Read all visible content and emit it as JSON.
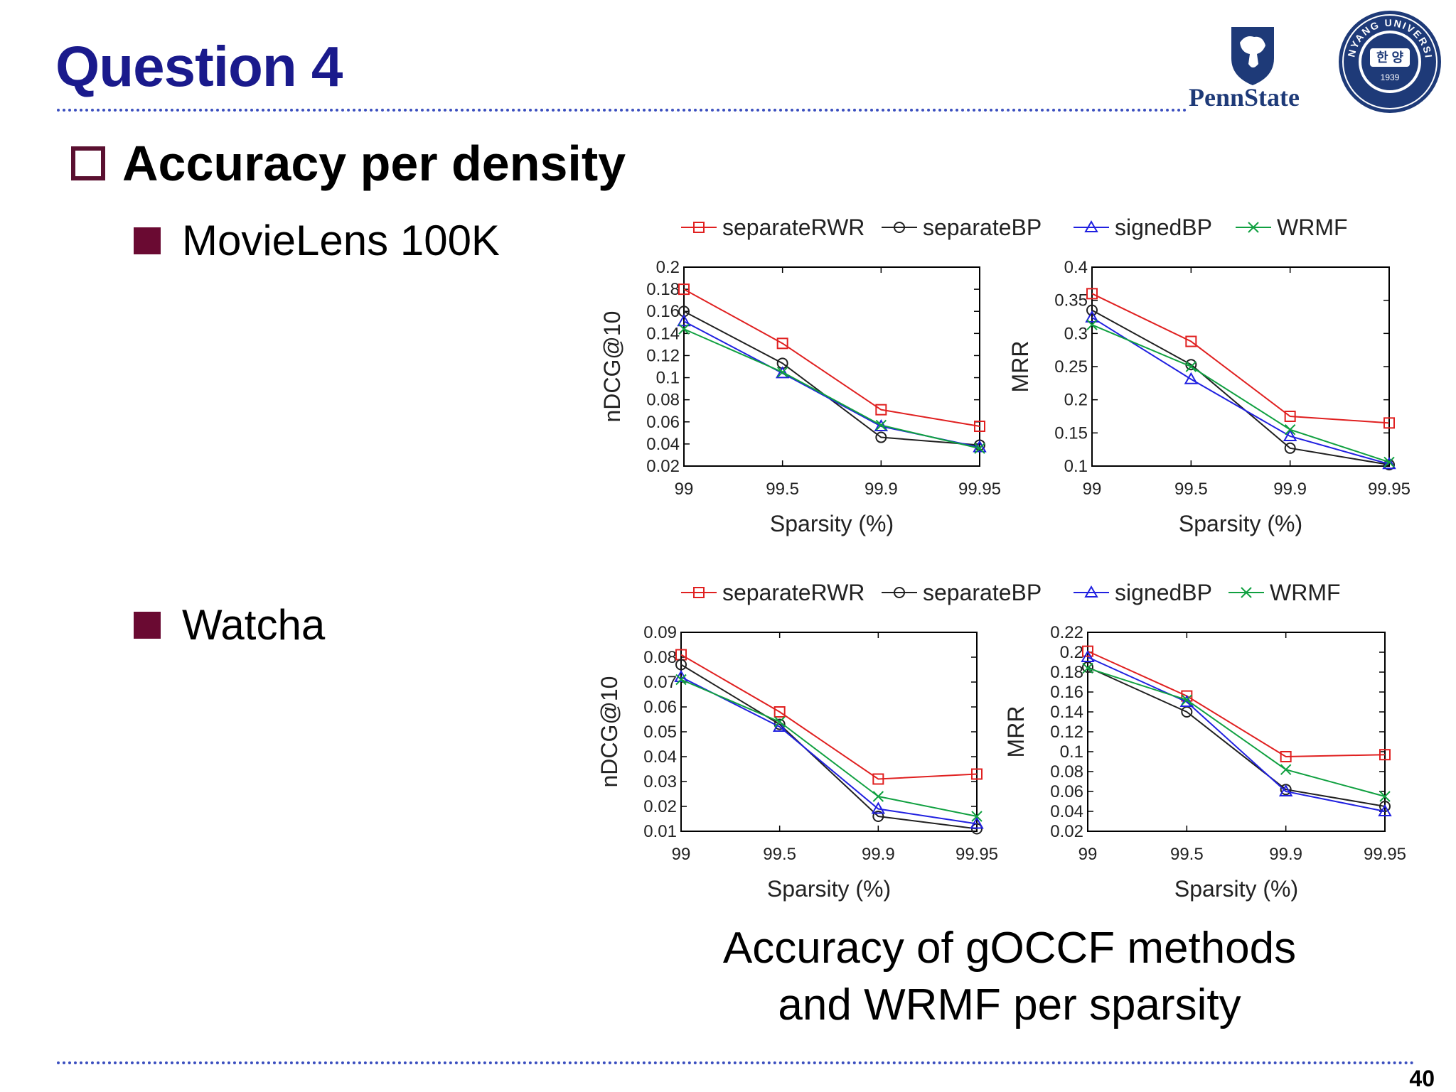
{
  "slide": {
    "title": "Question 4",
    "heading": "Accuracy per density",
    "bullets": [
      "MovieLens 100K",
      "Watcha"
    ],
    "caption_line1": "Accuracy of gOCCF methods",
    "caption_line2": "and WRMF per sparsity",
    "page_number": "40"
  },
  "logos": {
    "pennstate": {
      "wordmark": "PennState",
      "icon": "nittany-lion-shield-icon"
    },
    "hanyang": {
      "top_text": "HANYANG UNIVERSITY",
      "center_text": "한 양",
      "year": "1939",
      "icon": "hanyang-seal-icon"
    }
  },
  "colors": {
    "title": "#1a1a8c",
    "separateRWR": "#e02020",
    "separateBP": "#202020",
    "signedBP": "#2020e0",
    "WRMF": "#10a040"
  },
  "chart_data": [
    {
      "type": "line",
      "dataset": "MovieLens 100K",
      "ylabel": "nDCG@10",
      "xlabel": "Sparsity (%)",
      "categories": [
        "99",
        "99.5",
        "99.9",
        "99.95"
      ],
      "ylim": [
        0.02,
        0.2
      ],
      "yticks": [
        "0.02",
        "0.04",
        "0.06",
        "0.08",
        "0.1",
        "0.12",
        "0.14",
        "0.16",
        "0.18",
        "0.2"
      ],
      "series": [
        {
          "name": "separateRWR",
          "values": [
            0.18,
            0.131,
            0.071,
            0.056
          ]
        },
        {
          "name": "separateBP",
          "values": [
            0.16,
            0.113,
            0.046,
            0.039
          ]
        },
        {
          "name": "signedBP",
          "values": [
            0.151,
            0.104,
            0.056,
            0.037
          ]
        },
        {
          "name": "WRMF",
          "values": [
            0.144,
            0.105,
            0.057,
            0.036
          ]
        }
      ]
    },
    {
      "type": "line",
      "dataset": "MovieLens 100K",
      "ylabel": "MRR",
      "xlabel": "Sparsity (%)",
      "categories": [
        "99",
        "99.5",
        "99.9",
        "99.95"
      ],
      "ylim": [
        0.1,
        0.4
      ],
      "yticks": [
        "0.1",
        "0.15",
        "0.2",
        "0.25",
        "0.3",
        "0.35",
        "0.4"
      ],
      "series": [
        {
          "name": "separateRWR",
          "values": [
            0.36,
            0.288,
            0.175,
            0.165
          ]
        },
        {
          "name": "separateBP",
          "values": [
            0.335,
            0.253,
            0.127,
            0.102
          ]
        },
        {
          "name": "signedBP",
          "values": [
            0.324,
            0.231,
            0.145,
            0.103
          ]
        },
        {
          "name": "WRMF",
          "values": [
            0.313,
            0.25,
            0.155,
            0.106
          ]
        }
      ]
    },
    {
      "type": "line",
      "dataset": "Watcha",
      "ylabel": "nDCG@10",
      "xlabel": "Sparsity (%)",
      "categories": [
        "99",
        "99.5",
        "99.9",
        "99.95"
      ],
      "ylim": [
        0.01,
        0.09
      ],
      "yticks": [
        "0.01",
        "0.02",
        "0.03",
        "0.04",
        "0.05",
        "0.06",
        "0.07",
        "0.08",
        "0.09"
      ],
      "series": [
        {
          "name": "separateRWR",
          "values": [
            0.081,
            0.058,
            0.031,
            0.033
          ]
        },
        {
          "name": "separateBP",
          "values": [
            0.077,
            0.053,
            0.016,
            0.011
          ]
        },
        {
          "name": "signedBP",
          "values": [
            0.072,
            0.052,
            0.019,
            0.013
          ]
        },
        {
          "name": "WRMF",
          "values": [
            0.071,
            0.054,
            0.024,
            0.016
          ]
        }
      ]
    },
    {
      "type": "line",
      "dataset": "Watcha",
      "ylabel": "MRR",
      "xlabel": "Sparsity (%)",
      "categories": [
        "99",
        "99.5",
        "99.9",
        "99.95"
      ],
      "ylim": [
        0.02,
        0.22
      ],
      "yticks": [
        "0.02",
        "0.04",
        "0.06",
        "0.08",
        "0.1",
        "0.12",
        "0.14",
        "0.16",
        "0.18",
        "0.2",
        "0.22"
      ],
      "series": [
        {
          "name": "separateRWR",
          "values": [
            0.201,
            0.156,
            0.095,
            0.097
          ]
        },
        {
          "name": "separateBP",
          "values": [
            0.185,
            0.14,
            0.062,
            0.045
          ]
        },
        {
          "name": "signedBP",
          "values": [
            0.195,
            0.15,
            0.06,
            0.04
          ]
        },
        {
          "name": "WRMF",
          "values": [
            0.184,
            0.152,
            0.082,
            0.055
          ]
        }
      ]
    }
  ],
  "legends": [
    {
      "group": "MovieLens 100K",
      "entries": [
        "separateRWR",
        "separateBP",
        "signedBP",
        "WRMF"
      ]
    },
    {
      "group": "Watcha",
      "entries": [
        "separateRWR",
        "separateBP",
        "signedBP",
        "WRMF"
      ]
    }
  ]
}
